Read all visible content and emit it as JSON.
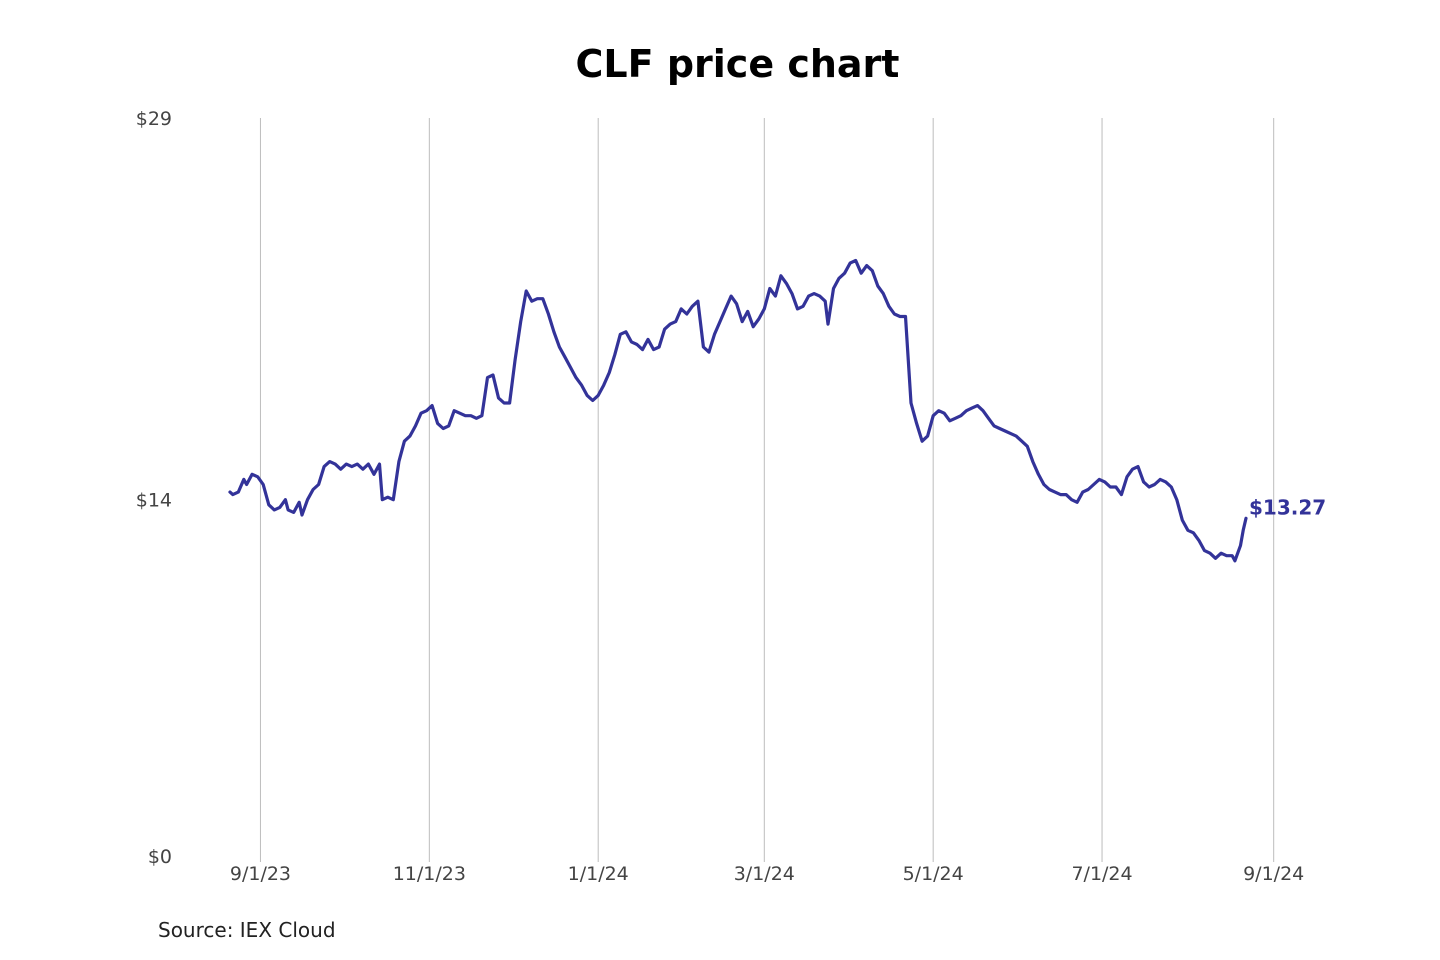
{
  "chart_data": {
    "type": "line",
    "title": "CLF price chart",
    "xlabel": "",
    "ylabel": "",
    "ylim": [
      0,
      29
    ],
    "y_ticks": [
      {
        "value": 0,
        "label": "$0"
      },
      {
        "value": 14,
        "label": "$14"
      },
      {
        "value": 29,
        "label": "$29"
      }
    ],
    "x_ticks": [
      {
        "day": 11,
        "label": "9/1/23"
      },
      {
        "day": 72,
        "label": "11/1/23"
      },
      {
        "day": 133,
        "label": "1/1/24"
      },
      {
        "day": 193,
        "label": "3/1/24"
      },
      {
        "day": 254,
        "label": "5/1/24"
      },
      {
        "day": 315,
        "label": "7/1/24"
      },
      {
        "day": 377,
        "label": "9/1/24"
      }
    ],
    "grid": "vertical",
    "line_color": "#333399",
    "x_unit": "days since 2023-08-21",
    "series": [
      {
        "name": "CLF",
        "points": [
          [
            0,
            14.3
          ],
          [
            1,
            14.2
          ],
          [
            3,
            14.3
          ],
          [
            5,
            14.8
          ],
          [
            6,
            14.6
          ],
          [
            8,
            15.0
          ],
          [
            10,
            14.9
          ],
          [
            12,
            14.6
          ],
          [
            14,
            13.8
          ],
          [
            16,
            13.6
          ],
          [
            18,
            13.7
          ],
          [
            20,
            14.0
          ],
          [
            21,
            13.6
          ],
          [
            23,
            13.5
          ],
          [
            25,
            13.9
          ],
          [
            26,
            13.4
          ],
          [
            28,
            14.0
          ],
          [
            30,
            14.4
          ],
          [
            32,
            14.6
          ],
          [
            34,
            15.3
          ],
          [
            36,
            15.5
          ],
          [
            38,
            15.4
          ],
          [
            40,
            15.2
          ],
          [
            42,
            15.4
          ],
          [
            44,
            15.3
          ],
          [
            46,
            15.4
          ],
          [
            48,
            15.2
          ],
          [
            50,
            15.4
          ],
          [
            52,
            15.0
          ],
          [
            54,
            15.4
          ],
          [
            55,
            14.0
          ],
          [
            57,
            14.1
          ],
          [
            59,
            14.0
          ],
          [
            61,
            15.5
          ],
          [
            63,
            16.3
          ],
          [
            65,
            16.5
          ],
          [
            67,
            16.9
          ],
          [
            69,
            17.4
          ],
          [
            71,
            17.5
          ],
          [
            73,
            17.7
          ],
          [
            75,
            17.0
          ],
          [
            77,
            16.8
          ],
          [
            79,
            16.9
          ],
          [
            81,
            17.5
          ],
          [
            83,
            17.4
          ],
          [
            85,
            17.3
          ],
          [
            87,
            17.3
          ],
          [
            89,
            17.2
          ],
          [
            91,
            17.3
          ],
          [
            93,
            18.8
          ],
          [
            95,
            18.9
          ],
          [
            97,
            18.0
          ],
          [
            99,
            17.8
          ],
          [
            101,
            17.8
          ],
          [
            103,
            19.5
          ],
          [
            105,
            21.0
          ],
          [
            107,
            22.2
          ],
          [
            109,
            21.8
          ],
          [
            111,
            21.9
          ],
          [
            113,
            21.9
          ],
          [
            115,
            21.3
          ],
          [
            117,
            20.6
          ],
          [
            119,
            20.0
          ],
          [
            121,
            19.6
          ],
          [
            123,
            19.2
          ],
          [
            125,
            18.8
          ],
          [
            127,
            18.5
          ],
          [
            129,
            18.1
          ],
          [
            131,
            17.9
          ],
          [
            133,
            18.1
          ],
          [
            135,
            18.5
          ],
          [
            137,
            19.0
          ],
          [
            139,
            19.7
          ],
          [
            141,
            20.5
          ],
          [
            143,
            20.6
          ],
          [
            145,
            20.2
          ],
          [
            147,
            20.1
          ],
          [
            149,
            19.9
          ],
          [
            151,
            20.3
          ],
          [
            153,
            19.9
          ],
          [
            155,
            20.0
          ],
          [
            157,
            20.7
          ],
          [
            159,
            20.9
          ],
          [
            161,
            21.0
          ],
          [
            163,
            21.5
          ],
          [
            165,
            21.3
          ],
          [
            167,
            21.6
          ],
          [
            169,
            21.8
          ],
          [
            171,
            20.0
          ],
          [
            173,
            19.8
          ],
          [
            175,
            20.5
          ],
          [
            177,
            21.0
          ],
          [
            179,
            21.5
          ],
          [
            181,
            22.0
          ],
          [
            183,
            21.7
          ],
          [
            185,
            21.0
          ],
          [
            187,
            21.4
          ],
          [
            189,
            20.8
          ],
          [
            191,
            21.1
          ],
          [
            193,
            21.5
          ],
          [
            195,
            22.3
          ],
          [
            197,
            22.0
          ],
          [
            199,
            22.8
          ],
          [
            201,
            22.5
          ],
          [
            203,
            22.1
          ],
          [
            205,
            21.5
          ],
          [
            207,
            21.6
          ],
          [
            209,
            22.0
          ],
          [
            211,
            22.1
          ],
          [
            213,
            22.0
          ],
          [
            215,
            21.8
          ],
          [
            216,
            20.9
          ],
          [
            218,
            22.3
          ],
          [
            220,
            22.7
          ],
          [
            222,
            22.9
          ],
          [
            224,
            23.3
          ],
          [
            226,
            23.4
          ],
          [
            228,
            22.9
          ],
          [
            230,
            23.2
          ],
          [
            232,
            23.0
          ],
          [
            234,
            22.4
          ],
          [
            236,
            22.1
          ],
          [
            238,
            21.6
          ],
          [
            240,
            21.3
          ],
          [
            242,
            21.2
          ],
          [
            244,
            21.2
          ],
          [
            246,
            17.8
          ],
          [
            248,
            17.0
          ],
          [
            250,
            16.3
          ],
          [
            252,
            16.5
          ],
          [
            254,
            17.3
          ],
          [
            256,
            17.5
          ],
          [
            258,
            17.4
          ],
          [
            260,
            17.1
          ],
          [
            262,
            17.2
          ],
          [
            264,
            17.3
          ],
          [
            266,
            17.5
          ],
          [
            268,
            17.6
          ],
          [
            270,
            17.7
          ],
          [
            272,
            17.5
          ],
          [
            274,
            17.2
          ],
          [
            276,
            16.9
          ],
          [
            278,
            16.8
          ],
          [
            280,
            16.7
          ],
          [
            282,
            16.6
          ],
          [
            284,
            16.5
          ],
          [
            286,
            16.3
          ],
          [
            288,
            16.1
          ],
          [
            290,
            15.5
          ],
          [
            292,
            15.0
          ],
          [
            294,
            14.6
          ],
          [
            296,
            14.4
          ],
          [
            298,
            14.3
          ],
          [
            300,
            14.2
          ],
          [
            302,
            14.2
          ],
          [
            304,
            14.0
          ],
          [
            306,
            13.9
          ],
          [
            308,
            14.3
          ],
          [
            310,
            14.4
          ],
          [
            312,
            14.6
          ],
          [
            314,
            14.8
          ],
          [
            316,
            14.7
          ],
          [
            318,
            14.5
          ],
          [
            320,
            14.5
          ],
          [
            322,
            14.2
          ],
          [
            324,
            14.9
          ],
          [
            326,
            15.2
          ],
          [
            328,
            15.3
          ],
          [
            330,
            14.7
          ],
          [
            332,
            14.5
          ],
          [
            334,
            14.6
          ],
          [
            336,
            14.8
          ],
          [
            338,
            14.7
          ],
          [
            340,
            14.5
          ],
          [
            342,
            14.0
          ],
          [
            344,
            13.2
          ],
          [
            346,
            12.8
          ],
          [
            348,
            12.7
          ],
          [
            350,
            12.4
          ],
          [
            352,
            12.0
          ],
          [
            354,
            11.9
          ],
          [
            356,
            11.7
          ],
          [
            358,
            11.9
          ],
          [
            360,
            11.8
          ],
          [
            362,
            11.8
          ],
          [
            363,
            11.6
          ],
          [
            365,
            12.2
          ],
          [
            366,
            12.8
          ],
          [
            367,
            13.27
          ]
        ]
      }
    ],
    "last_value_label": "$13.27"
  },
  "source": "Source: IEX Cloud"
}
